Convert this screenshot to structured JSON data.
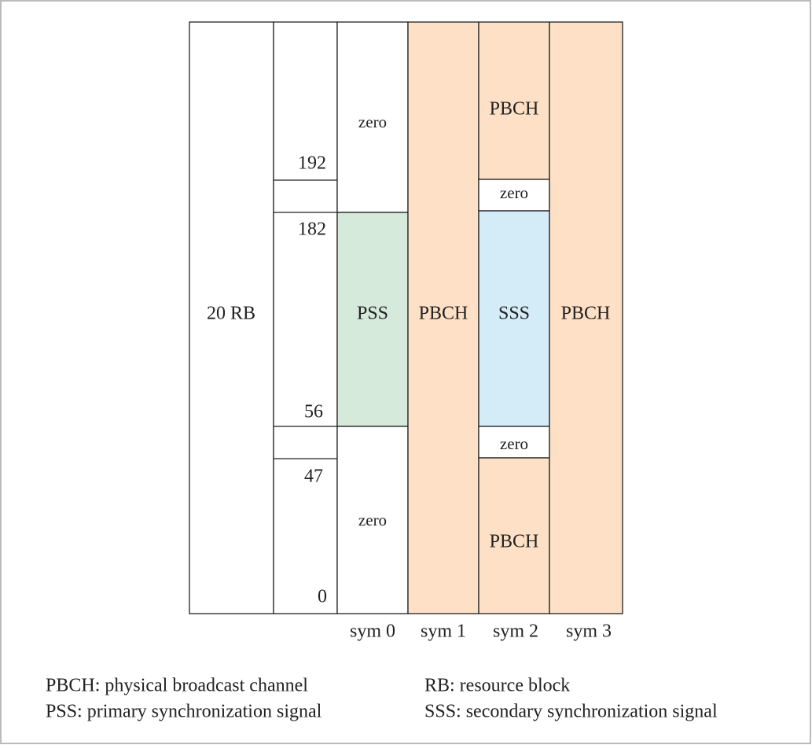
{
  "diagram": {
    "bandwidth_label": "20 RB",
    "subcarrier_indices": [
      192,
      182,
      56,
      47,
      0
    ],
    "columns": [
      {
        "label": "sym 0",
        "cells": [
          "zero",
          "PSS",
          "zero"
        ]
      },
      {
        "label": "sym 1",
        "cells": [
          "PBCH"
        ]
      },
      {
        "label": "sym 2",
        "cells": [
          "PBCH",
          "zero",
          "SSS",
          "zero",
          "PBCH"
        ]
      },
      {
        "label": "sym 3",
        "cells": [
          "PBCH"
        ]
      }
    ]
  },
  "legend": [
    "PBCH: physical broadcast channel",
    "RB: resource block",
    "PSS: primary synchronization signal",
    "SSS: secondary synchronization signal"
  ]
}
